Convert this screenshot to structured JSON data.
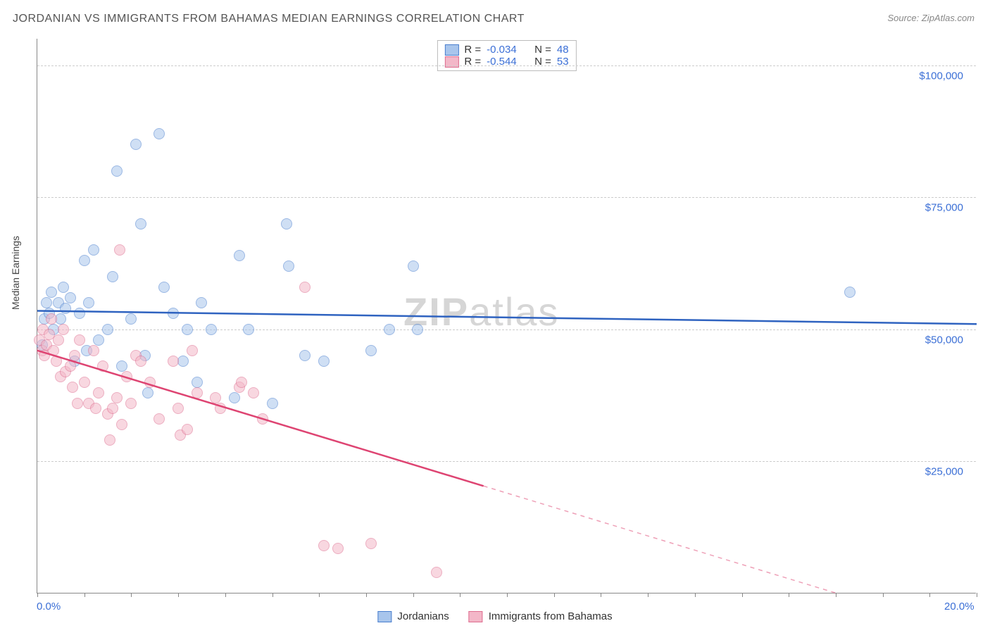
{
  "title": "JORDANIAN VS IMMIGRANTS FROM BAHAMAS MEDIAN EARNINGS CORRELATION CHART",
  "source": "Source: ZipAtlas.com",
  "ylabel": "Median Earnings",
  "watermark_bold": "ZIP",
  "watermark_light": "atlas",
  "chart": {
    "type": "scatter",
    "background_color": "#ffffff",
    "grid_color": "#cccccc",
    "axis_color": "#888888",
    "xlim": [
      0,
      20
    ],
    "ylim": [
      0,
      105000
    ],
    "x_tick_positions": [
      0,
      1,
      2,
      3,
      4,
      5,
      6,
      7,
      8,
      9,
      10,
      11,
      12,
      13,
      14,
      15,
      16,
      17,
      18,
      19,
      20
    ],
    "x_tick_labels": {
      "0": "0.0%",
      "20": "20.0%"
    },
    "y_gridlines": [
      25000,
      50000,
      75000,
      100000
    ],
    "y_tick_labels": {
      "25000": "$25,000",
      "50000": "$50,000",
      "75000": "$75,000",
      "100000": "$100,000"
    },
    "tick_label_color": "#3b6fd6",
    "tick_label_fontsize": 15,
    "marker_radius": 8,
    "marker_opacity": 0.55,
    "marker_border_width": 1.2,
    "series": [
      {
        "name": "Jordanians",
        "color_fill": "#a8c5ec",
        "color_stroke": "#4a7fce",
        "trend_color": "#2f63c0",
        "R": "-0.034",
        "N": "48",
        "trend": {
          "x1": 0,
          "y1": 53500,
          "x2": 20,
          "y2": 51000,
          "solid_until_x": 20
        },
        "points": [
          [
            0.1,
            47000
          ],
          [
            0.15,
            52000
          ],
          [
            0.2,
            55000
          ],
          [
            0.25,
            53000
          ],
          [
            0.3,
            57000
          ],
          [
            0.35,
            50000
          ],
          [
            0.45,
            55000
          ],
          [
            0.5,
            52000
          ],
          [
            0.55,
            58000
          ],
          [
            0.6,
            54000
          ],
          [
            0.7,
            56000
          ],
          [
            0.8,
            44000
          ],
          [
            0.9,
            53000
          ],
          [
            1.0,
            63000
          ],
          [
            1.05,
            46000
          ],
          [
            1.1,
            55000
          ],
          [
            1.2,
            65000
          ],
          [
            1.3,
            48000
          ],
          [
            1.5,
            50000
          ],
          [
            1.6,
            60000
          ],
          [
            1.7,
            80000
          ],
          [
            1.8,
            43000
          ],
          [
            2.0,
            52000
          ],
          [
            2.1,
            85000
          ],
          [
            2.2,
            70000
          ],
          [
            2.3,
            45000
          ],
          [
            2.35,
            38000
          ],
          [
            2.6,
            87000
          ],
          [
            2.7,
            58000
          ],
          [
            2.9,
            53000
          ],
          [
            3.1,
            44000
          ],
          [
            3.2,
            50000
          ],
          [
            3.4,
            40000
          ],
          [
            3.5,
            55000
          ],
          [
            3.7,
            50000
          ],
          [
            4.2,
            37000
          ],
          [
            4.3,
            64000
          ],
          [
            4.5,
            50000
          ],
          [
            5.0,
            36000
          ],
          [
            5.3,
            70000
          ],
          [
            5.35,
            62000
          ],
          [
            5.7,
            45000
          ],
          [
            6.1,
            44000
          ],
          [
            7.1,
            46000
          ],
          [
            7.5,
            50000
          ],
          [
            8.0,
            62000
          ],
          [
            8.1,
            50000
          ],
          [
            17.3,
            57000
          ]
        ]
      },
      {
        "name": "Immigrants from Bahamas",
        "color_fill": "#f3b7c8",
        "color_stroke": "#de6d8f",
        "trend_color": "#de4472",
        "R": "-0.544",
        "N": "53",
        "trend": {
          "x1": 0,
          "y1": 46000,
          "x2": 20,
          "y2": -8000,
          "solid_until_x": 9.5
        },
        "points": [
          [
            0.05,
            48000
          ],
          [
            0.1,
            46000
          ],
          [
            0.12,
            50000
          ],
          [
            0.15,
            45000
          ],
          [
            0.2,
            47000
          ],
          [
            0.25,
            49000
          ],
          [
            0.3,
            52000
          ],
          [
            0.35,
            46000
          ],
          [
            0.4,
            44000
          ],
          [
            0.45,
            48000
          ],
          [
            0.5,
            41000
          ],
          [
            0.55,
            50000
          ],
          [
            0.6,
            42000
          ],
          [
            0.7,
            43000
          ],
          [
            0.75,
            39000
          ],
          [
            0.8,
            45000
          ],
          [
            0.85,
            36000
          ],
          [
            0.9,
            48000
          ],
          [
            1.0,
            40000
          ],
          [
            1.1,
            36000
          ],
          [
            1.2,
            46000
          ],
          [
            1.25,
            35000
          ],
          [
            1.3,
            38000
          ],
          [
            1.4,
            43000
          ],
          [
            1.5,
            34000
          ],
          [
            1.55,
            29000
          ],
          [
            1.6,
            35000
          ],
          [
            1.7,
            37000
          ],
          [
            1.75,
            65000
          ],
          [
            1.8,
            32000
          ],
          [
            2.0,
            36000
          ],
          [
            2.1,
            45000
          ],
          [
            2.2,
            44000
          ],
          [
            2.4,
            40000
          ],
          [
            2.6,
            33000
          ],
          [
            2.9,
            44000
          ],
          [
            3.0,
            35000
          ],
          [
            3.05,
            30000
          ],
          [
            3.3,
            46000
          ],
          [
            3.4,
            38000
          ],
          [
            3.8,
            37000
          ],
          [
            3.9,
            35000
          ],
          [
            4.3,
            39000
          ],
          [
            4.35,
            40000
          ],
          [
            4.6,
            38000
          ],
          [
            4.8,
            33000
          ],
          [
            5.7,
            58000
          ],
          [
            6.1,
            9000
          ],
          [
            6.4,
            8500
          ],
          [
            7.1,
            9500
          ],
          [
            8.5,
            4000
          ],
          [
            3.2,
            31000
          ],
          [
            1.9,
            41000
          ]
        ]
      }
    ]
  },
  "legend_bottom": [
    {
      "label": "Jordanians",
      "fill": "#a8c5ec",
      "stroke": "#4a7fce"
    },
    {
      "label": "Immigrants from Bahamas",
      "fill": "#f3b7c8",
      "stroke": "#de6d8f"
    }
  ]
}
